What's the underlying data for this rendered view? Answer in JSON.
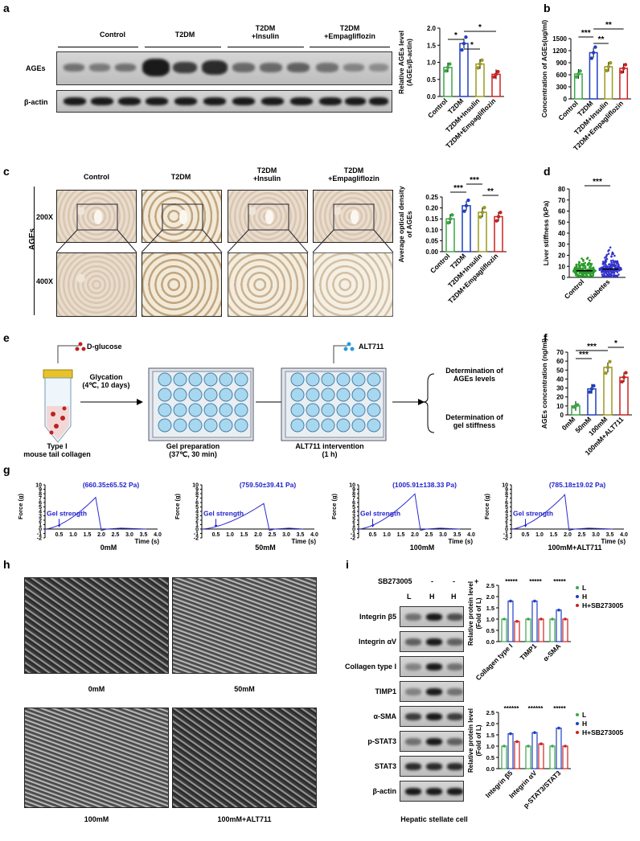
{
  "panels": {
    "a": "a",
    "b": "b",
    "c": "c",
    "d": "d",
    "e": "e",
    "f": "f",
    "g": "g",
    "h": "h",
    "i": "i"
  },
  "panel_a": {
    "groups": [
      "Control",
      "T2DM",
      "T2DM\n+Insulin",
      "T2DM\n+Empagliflozin"
    ],
    "row_labels": [
      "AGEs",
      "β-actin"
    ]
  },
  "panel_c": {
    "groups": [
      "Control",
      "T2DM",
      "T2DM\n+Insulin",
      "T2DM\n+Empagliflozin"
    ],
    "side_label": "AGEs",
    "mag1": "200X",
    "mag2": "400X"
  },
  "panel_e": {
    "dglucose": "D-glucose",
    "alt711": "ALT711",
    "glycation": "Glycation\n(4℃, 10 days)",
    "collagen": "Type I\nmouse tail collagen",
    "gel_prep": "Gel preparation\n(37℃, 30 min)",
    "alt_int": "ALT711 intervention\n(1 h)",
    "det1": "Determination of\nAGEs levels",
    "det2": "Determination of\ngel stiffness"
  },
  "panel_g": {
    "ylabel": "Force (g)",
    "xlabel": "Time (s)",
    "annot": "Gel strength",
    "plots": [
      {
        "label": "0mM",
        "value": "(660.35±65.52 Pa)"
      },
      {
        "label": "50mM",
        "value": "(759.50±39.41 Pa)"
      },
      {
        "label": "100mM",
        "value": "(1005.91±138.33 Pa)"
      },
      {
        "label": "100mM+ALT711",
        "value": "(785.18±19.02 Pa)"
      }
    ]
  },
  "panel_h": {
    "labels": [
      "0mM",
      "50mM",
      "100mM",
      "100mM+ALT711"
    ]
  },
  "panel_i": {
    "sb_label": "SB273005",
    "sb_signs": [
      "-",
      "-",
      "+"
    ],
    "lanes": [
      "L",
      "H",
      "H"
    ],
    "rows": [
      "Integrin β5",
      "Integrin αV",
      "Collagen type I",
      "TIMP1",
      "α-SMA",
      "p-STAT3",
      "STAT3",
      "β-actin"
    ],
    "footer": "Hepatic stellate cell"
  },
  "chart_data": [
    {
      "type": "bar",
      "id": "a",
      "categories": [
        "Control",
        "T2DM",
        "T2DM+Insulin",
        "T2DM+Empagliflozin"
      ],
      "values": [
        0.85,
        1.55,
        0.95,
        0.65
      ],
      "ylabel": "Relative AGEs level\n(AGEs/β-actin)",
      "ylim": [
        0,
        2
      ],
      "yticks": [
        0,
        0.5,
        1.0,
        1.5,
        2.0
      ],
      "colors": [
        "#3aa845",
        "#1f3fc4",
        "#9a9a20",
        "#cc2222"
      ],
      "sig": [
        "*",
        "*",
        "*"
      ]
    },
    {
      "type": "bar",
      "id": "b",
      "categories": [
        "Control",
        "T2DM",
        "T2DM+Insulin",
        "T2DM+Empagliflozin"
      ],
      "values": [
        620,
        1150,
        800,
        760
      ],
      "ylabel": "Concentration of AGEs(ug/ml)",
      "ylim": [
        0,
        1500
      ],
      "yticks": [
        0,
        300,
        600,
        900,
        1200,
        1500
      ],
      "colors": [
        "#3aa845",
        "#1f3fc4",
        "#9a9a20",
        "#cc2222"
      ],
      "sig": [
        "***",
        "**",
        "**"
      ]
    },
    {
      "type": "bar",
      "id": "c",
      "categories": [
        "Control",
        "T2DM",
        "T2DM+Insulin",
        "T2DM+Empagliflozin"
      ],
      "values": [
        0.15,
        0.21,
        0.18,
        0.16
      ],
      "ylabel": "Average optical density\nof AGEs",
      "ylim": [
        0,
        0.25
      ],
      "yticks": [
        0,
        0.05,
        0.1,
        0.15,
        0.2,
        0.25
      ],
      "colors": [
        "#3aa845",
        "#1f3fc4",
        "#9a9a20",
        "#cc2222"
      ],
      "sig": [
        "***",
        "***",
        "**"
      ]
    },
    {
      "type": "scatter",
      "id": "d",
      "categories": [
        "Control",
        "Diabetes"
      ],
      "values": [
        6.0,
        7.5
      ],
      "ylabel": "Liver stiffness (kPa)",
      "ylim": [
        0,
        80
      ],
      "yticks": [
        0,
        10,
        20,
        30,
        40,
        50,
        60,
        70,
        80
      ],
      "colors": [
        "#2a9a2a",
        "#3333cc"
      ],
      "sig": [
        "***"
      ]
    },
    {
      "type": "bar",
      "id": "f",
      "categories": [
        "0mM",
        "50mM",
        "100mM",
        "100mM+ALT711"
      ],
      "values": [
        10,
        29,
        53,
        42
      ],
      "ylabel": "AGEs concentration (ng/ml)",
      "ylim": [
        0,
        70
      ],
      "yticks": [
        0,
        10,
        20,
        30,
        40,
        50,
        60,
        70
      ],
      "colors": [
        "#3aa845",
        "#1f3fc4",
        "#9a9a20",
        "#cc2222"
      ],
      "sig": [
        "***",
        "***",
        "*"
      ]
    },
    {
      "type": "bar",
      "id": "i1",
      "categories": [
        "Collagen type I",
        "TIMP1",
        "α-SMA"
      ],
      "series": [
        {
          "name": "L",
          "values": [
            1.0,
            1.0,
            1.0
          ]
        },
        {
          "name": "H",
          "values": [
            1.8,
            1.8,
            1.4
          ]
        },
        {
          "name": "H+SB273005",
          "values": [
            0.9,
            1.0,
            1.0
          ]
        }
      ],
      "ylabel": "Relative protein level\n(Fold of L)",
      "ylim": [
        0,
        2.5
      ],
      "yticks": [
        0,
        0.5,
        1.0,
        1.5,
        2.0,
        2.5
      ],
      "colors": [
        "#3aa845",
        "#1f3fc4",
        "#cc2222"
      ],
      "sig": [
        "*****",
        "*****",
        "*****"
      ]
    },
    {
      "type": "bar",
      "id": "i2",
      "categories": [
        "Integrin β5",
        "Integrin αV",
        "p-STAT3/STAT3"
      ],
      "series": [
        {
          "name": "L",
          "values": [
            1.0,
            1.0,
            1.0
          ]
        },
        {
          "name": "H",
          "values": [
            1.55,
            1.6,
            1.8
          ]
        },
        {
          "name": "H+SB273005",
          "values": [
            1.2,
            1.1,
            1.0
          ]
        }
      ],
      "ylabel": "Relative protein level\n(Fold of L)",
      "ylim": [
        0,
        2.5
      ],
      "yticks": [
        0,
        0.5,
        1.0,
        1.5,
        2.0,
        2.5
      ],
      "colors": [
        "#3aa845",
        "#1f3fc4",
        "#cc2222"
      ],
      "sig": [
        "******",
        "******",
        "*****"
      ]
    },
    {
      "type": "line",
      "id": "g",
      "series_names": [
        "0mM",
        "50mM",
        "100mM",
        "100mM+ALT711"
      ],
      "xlabel": "Time (s)",
      "ylabel": "Force (g)",
      "xlim": [
        0,
        4.0
      ],
      "ylim": [
        -2,
        10
      ],
      "xticks": [
        0.5,
        1.0,
        1.5,
        2.0,
        2.5,
        3.0,
        3.5,
        4.0
      ],
      "yticks": [
        -2,
        -1,
        0,
        1,
        2,
        3,
        4,
        5,
        6,
        7,
        8,
        9,
        10
      ],
      "peaks": [
        {
          "t": 1.9,
          "f": 7.8
        },
        {
          "t": 2.3,
          "f": 6.2
        },
        {
          "t": 2.1,
          "f": 8.6
        },
        {
          "t": 1.95,
          "f": 8.1
        }
      ]
    }
  ]
}
